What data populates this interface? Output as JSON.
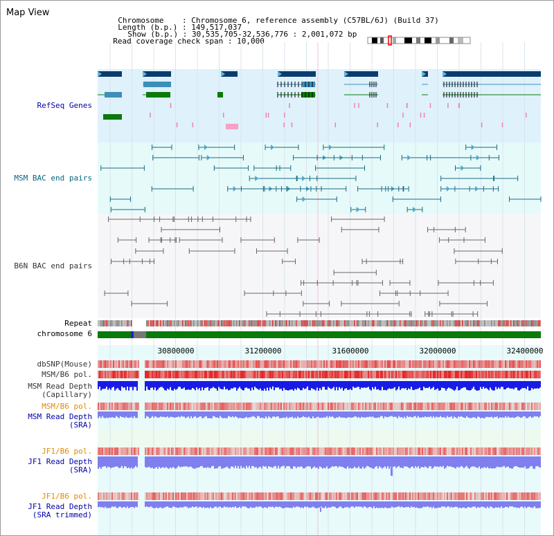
{
  "title": "Map View",
  "info": {
    "chromosome_label": "Chromosome",
    "chromosome_value": "Chromosome 6, reference assembly (C57BL/6J) (Build 37)",
    "length_label": "Length (b.p.)",
    "length_value": "149,517,037",
    "show_label": "Show (b.p.)",
    "show_value": "30,535,705-32,536,776 : 2,001,072 bp",
    "coverage_label": "Read coverage check span",
    "coverage_value": "10,000"
  },
  "tracks": {
    "refseq": "RefSeq Genes",
    "msm_bac": "MSM BAC end pairs",
    "b6n_bac": "B6N BAC end pairs",
    "repeat": "Repeat",
    "chromosome": "chromosome 6",
    "dbsnp": "dbSNP(Mouse)",
    "msm_b6_pol_1": "MSM/B6 pol.",
    "msm_depth_cap_1": "MSM Read Depth",
    "msm_depth_cap_2": "(Capillary)",
    "msm_b6_pol_2": "MSM/B6 pol.",
    "msm_depth_sra_1": "MSM Read Depth",
    "msm_depth_sra_2": "(SRA)",
    "jf1_b6_pol_1": "JF1/B6 pol.",
    "jf1_depth_sra_1": "JF1 Read Depth",
    "jf1_depth_sra_2": "(SRA)",
    "jf1_b6_pol_2": "JF1/B6 pol.",
    "jf1_depth_trim_1": "JF1 Read Depth",
    "jf1_depth_trim_2": "(SRA trimmed)"
  },
  "axis_ticks": [
    "30800000",
    "31200000",
    "31600000",
    "32000000",
    "32400000"
  ],
  "colors": {
    "refseq_bg": "#dff1fb",
    "bac_bg": "#e6fafa",
    "b6n_bg": "#f6f6f8",
    "gene_dark": "#0b3c6e",
    "gene_mid": "#3b8fb8",
    "gene_green": "#0a7a0a",
    "msm_line": "#1a6a80",
    "b6n_line": "#666666",
    "depth_blue": "#1a1ae6",
    "depth_light": "#7f7ff0",
    "pol_red": "#ee2222"
  }
}
